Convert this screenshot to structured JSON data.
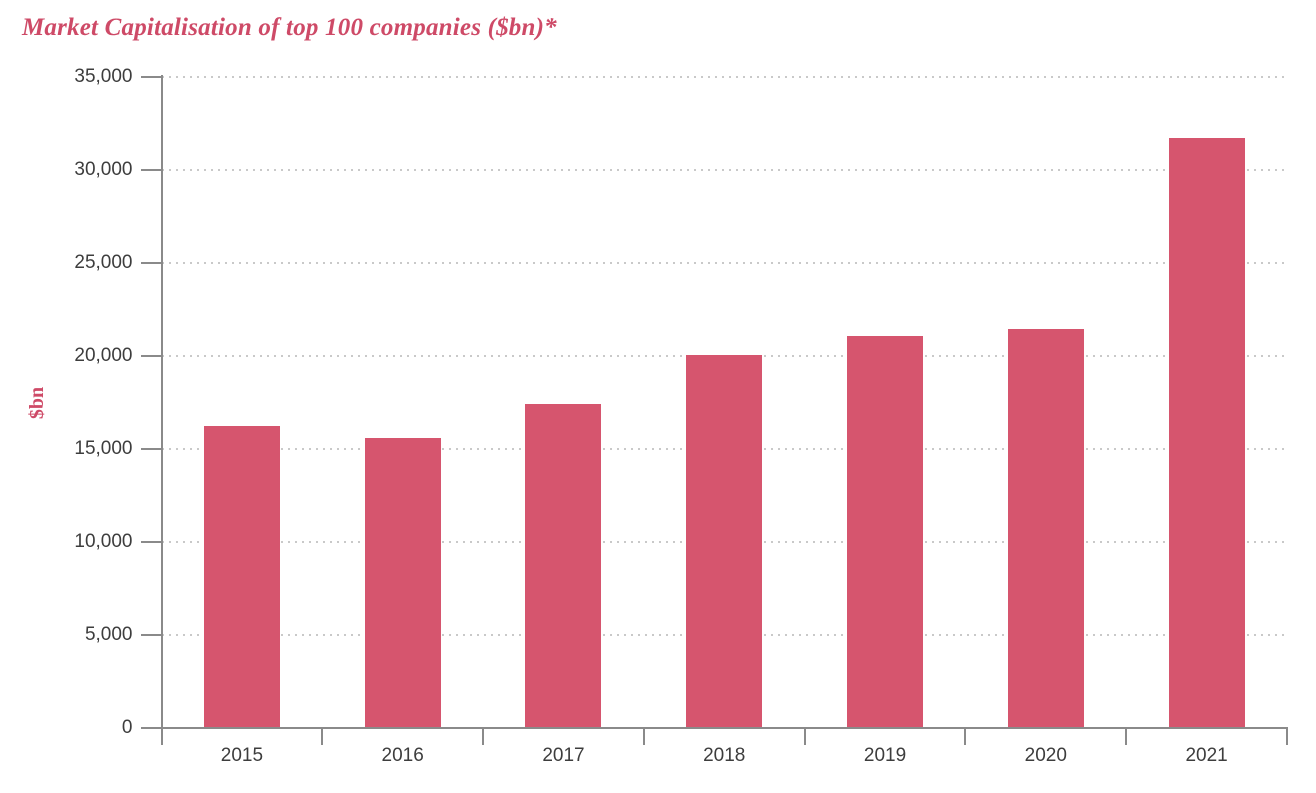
{
  "chart_data": {
    "type": "bar",
    "title": "Market Capitalisation of top 100 companies ($bn)*",
    "ylabel": "$bn",
    "categories": [
      "2015",
      "2016",
      "2017",
      "2018",
      "2019",
      "2020",
      "2021"
    ],
    "values": [
      16245,
      15577,
      17403,
      20035,
      21083,
      21465,
      31727
    ],
    "ylim": [
      0,
      35000
    ],
    "yticks": [
      0,
      5000,
      10000,
      15000,
      20000,
      25000,
      30000,
      35000
    ],
    "ytick_labels": [
      "0",
      "5,000",
      "10,000",
      "15,000",
      "20,000",
      "25,000",
      "30,000",
      "35,000"
    ],
    "grid": "horizontal-dotted",
    "legend": "none",
    "colors": {
      "bar": "#d6556e",
      "title": "#ce4a67",
      "ylabel_text": "#ce4a67",
      "axis": "#8a8a8a",
      "grid": "#c9c9c9",
      "tick_label": "#3d3d3d"
    }
  }
}
